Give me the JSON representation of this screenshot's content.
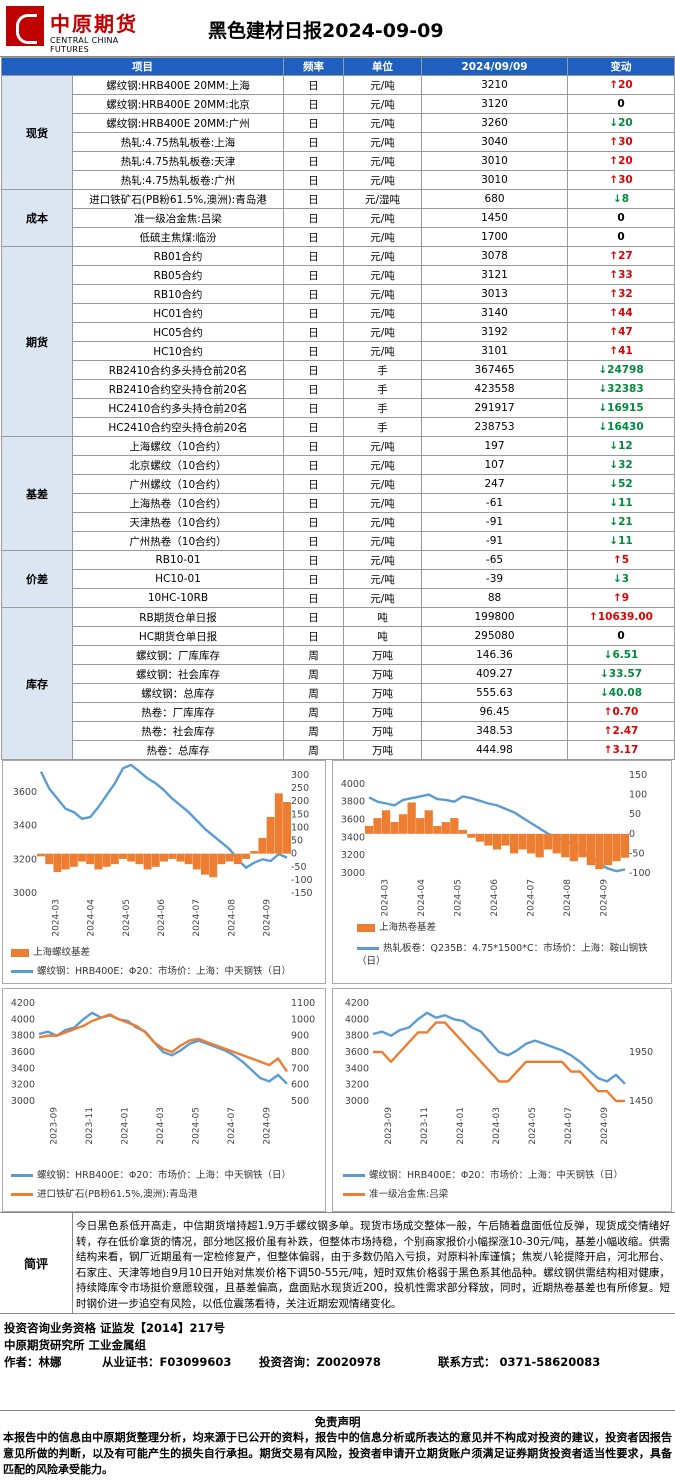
{
  "header": {
    "logo_cn": "中原期货",
    "logo_en": "CENTRAL CHINA FUTURES",
    "title": "黑色建材日报2024-09-09"
  },
  "table": {
    "columns": [
      "项目",
      "频率",
      "单位",
      "2024/09/09",
      "变动"
    ],
    "groups": [
      {
        "category": "现货",
        "rows": [
          {
            "item": "螺纹钢:HRB400E 20MM:上海",
            "freq": "日",
            "unit": "元/吨",
            "value": "3210",
            "change": "20",
            "dir": "up"
          },
          {
            "item": "螺纹钢:HRB400E 20MM:北京",
            "freq": "日",
            "unit": "元/吨",
            "value": "3120",
            "change": "0",
            "dir": "zero"
          },
          {
            "item": "螺纹钢:HRB400E 20MM:广州",
            "freq": "日",
            "unit": "元/吨",
            "value": "3260",
            "change": "20",
            "dir": "down"
          },
          {
            "item": "热轧:4.75热轧板卷:上海",
            "freq": "日",
            "unit": "元/吨",
            "value": "3040",
            "change": "30",
            "dir": "up"
          },
          {
            "item": "热轧:4.75热轧板卷:天津",
            "freq": "日",
            "unit": "元/吨",
            "value": "3010",
            "change": "20",
            "dir": "up"
          },
          {
            "item": "热轧:4.75热轧板卷:广州",
            "freq": "日",
            "unit": "元/吨",
            "value": "3010",
            "change": "30",
            "dir": "up"
          }
        ]
      },
      {
        "category": "成本",
        "rows": [
          {
            "item": "进口铁矿石(PB粉61.5%,澳洲):青岛港",
            "freq": "日",
            "unit": "元/湿吨",
            "value": "680",
            "change": "8",
            "dir": "down"
          },
          {
            "item": "准一级冶金焦:吕梁",
            "freq": "日",
            "unit": "元/吨",
            "value": "1450",
            "change": "0",
            "dir": "zero"
          },
          {
            "item": "低硫主焦煤:临汾",
            "freq": "日",
            "unit": "元/吨",
            "value": "1700",
            "change": "0",
            "dir": "zero"
          }
        ]
      },
      {
        "category": "期货",
        "rows": [
          {
            "item": "RB01合约",
            "freq": "日",
            "unit": "元/吨",
            "value": "3078",
            "change": "27",
            "dir": "up"
          },
          {
            "item": "RB05合约",
            "freq": "日",
            "unit": "元/吨",
            "value": "3121",
            "change": "33",
            "dir": "up"
          },
          {
            "item": "RB10合约",
            "freq": "日",
            "unit": "元/吨",
            "value": "3013",
            "change": "32",
            "dir": "up"
          },
          {
            "item": "HC01合约",
            "freq": "日",
            "unit": "元/吨",
            "value": "3140",
            "change": "44",
            "dir": "up"
          },
          {
            "item": "HC05合约",
            "freq": "日",
            "unit": "元/吨",
            "value": "3192",
            "change": "47",
            "dir": "up"
          },
          {
            "item": "HC10合约",
            "freq": "日",
            "unit": "元/吨",
            "value": "3101",
            "change": "41",
            "dir": "up"
          },
          {
            "item": "RB2410合约多头持仓前20名",
            "freq": "日",
            "unit": "手",
            "value": "367465",
            "change": "24798",
            "dir": "down"
          },
          {
            "item": "RB2410合约空头持仓前20名",
            "freq": "日",
            "unit": "手",
            "value": "423558",
            "change": "32383",
            "dir": "down"
          },
          {
            "item": "HC2410合约多头持仓前20名",
            "freq": "日",
            "unit": "手",
            "value": "291917",
            "change": "16915",
            "dir": "down"
          },
          {
            "item": "HC2410合约空头持仓前20名",
            "freq": "日",
            "unit": "手",
            "value": "238753",
            "change": "16430",
            "dir": "down"
          }
        ]
      },
      {
        "category": "基差",
        "rows": [
          {
            "item": "上海螺纹（10合约）",
            "freq": "日",
            "unit": "元/吨",
            "value": "197",
            "change": "12",
            "dir": "down"
          },
          {
            "item": "北京螺纹（10合约）",
            "freq": "日",
            "unit": "元/吨",
            "value": "107",
            "change": "32",
            "dir": "down"
          },
          {
            "item": "广州螺纹（10合约）",
            "freq": "日",
            "unit": "元/吨",
            "value": "247",
            "change": "52",
            "dir": "down"
          },
          {
            "item": "上海热卷（10合约）",
            "freq": "日",
            "unit": "元/吨",
            "value": "-61",
            "change": "11",
            "dir": "down"
          },
          {
            "item": "天津热卷（10合约）",
            "freq": "日",
            "unit": "元/吨",
            "value": "-91",
            "change": "21",
            "dir": "down"
          },
          {
            "item": "广州热卷（10合约）",
            "freq": "日",
            "unit": "元/吨",
            "value": "-91",
            "change": "11",
            "dir": "down"
          }
        ]
      },
      {
        "category": "价差",
        "rows": [
          {
            "item": "RB10-01",
            "freq": "日",
            "unit": "元/吨",
            "value": "-65",
            "change": "5",
            "dir": "up"
          },
          {
            "item": "HC10-01",
            "freq": "日",
            "unit": "元/吨",
            "value": "-39",
            "change": "3",
            "dir": "down"
          },
          {
            "item": "10HC-10RB",
            "freq": "日",
            "unit": "元/吨",
            "value": "88",
            "change": "9",
            "dir": "up"
          }
        ]
      },
      {
        "category": "库存",
        "rows": [
          {
            "item": "RB期货仓单日报",
            "freq": "日",
            "unit": "吨",
            "value": "199800",
            "change": "10639.00",
            "dir": "up"
          },
          {
            "item": "HC期货仓单日报",
            "freq": "日",
            "unit": "吨",
            "value": "295080",
            "change": "0",
            "dir": "zero"
          },
          {
            "item": "螺纹钢：厂库库存",
            "freq": "周",
            "unit": "万吨",
            "value": "146.36",
            "change": "6.51",
            "dir": "down"
          },
          {
            "item": "螺纹钢：社会库存",
            "freq": "周",
            "unit": "万吨",
            "value": "409.27",
            "change": "33.57",
            "dir": "down"
          },
          {
            "item": "螺纹钢：总库存",
            "freq": "周",
            "unit": "万吨",
            "value": "555.63",
            "change": "40.08",
            "dir": "down"
          },
          {
            "item": "热卷：厂库库存",
            "freq": "周",
            "unit": "万吨",
            "value": "96.45",
            "change": "0.70",
            "dir": "up"
          },
          {
            "item": "热卷：社会库存",
            "freq": "周",
            "unit": "万吨",
            "value": "348.53",
            "change": "2.47",
            "dir": "up"
          },
          {
            "item": "热卷：总库存",
            "freq": "周",
            "unit": "万吨",
            "value": "444.98",
            "change": "3.17",
            "dir": "up"
          }
        ]
      }
    ]
  },
  "chart_data": [
    {
      "type": "line",
      "x_ticks": [
        "2024-03",
        "2024-04",
        "2024-05",
        "2024-06",
        "2024-07",
        "2024-08",
        "2024-09"
      ],
      "y_left_ticks": [
        "3000",
        "3200",
        "3400",
        "3600"
      ],
      "y_right_ticks": [
        "-150",
        "-100",
        "-50",
        "0",
        "50",
        "100",
        "150",
        "200",
        "250",
        "300"
      ],
      "ylim_left": [
        3000,
        3700
      ],
      "ylim_right": [
        -150,
        300
      ],
      "series": [
        {
          "name": "螺纹钢：HRB400E：Φ20：市场价：上海：中天钢铁（日）",
          "axis": "left",
          "style": "line",
          "color": "#5b9bd5",
          "values": [
            3720,
            3620,
            3560,
            3500,
            3480,
            3440,
            3450,
            3510,
            3580,
            3650,
            3740,
            3760,
            3720,
            3680,
            3650,
            3610,
            3560,
            3520,
            3480,
            3430,
            3380,
            3340,
            3300,
            3260,
            3200,
            3150,
            3180,
            3200,
            3190,
            3230,
            3210
          ]
        },
        {
          "name": "上海螺纹基差",
          "axis": "right",
          "style": "area",
          "color": "#ed7d31",
          "values": [
            -10,
            -40,
            -70,
            -60,
            -50,
            -30,
            -40,
            -60,
            -50,
            -40,
            -20,
            -30,
            -40,
            -60,
            -50,
            -30,
            -20,
            -30,
            -40,
            -60,
            -80,
            -90,
            -40,
            -30,
            -40,
            -20,
            10,
            60,
            140,
            230,
            197
          ]
        }
      ]
    },
    {
      "type": "line",
      "x_ticks": [
        "2024-03",
        "2024-04",
        "2024-05",
        "2024-06",
        "2024-07",
        "2024-08",
        "2024-09"
      ],
      "y_left_ticks": [
        "3000",
        "3200",
        "3400",
        "3600",
        "3800",
        "4000"
      ],
      "y_right_ticks": [
        "-100",
        "-50",
        "0",
        "50",
        "100",
        "150"
      ],
      "ylim_left": [
        3000,
        4100
      ],
      "ylim_right": [
        -100,
        150
      ],
      "series": [
        {
          "name": "热轧板卷：Q235B：4.75*1500*C：市场价：上海：鞍山钢铁（日）",
          "axis": "left",
          "style": "line",
          "color": "#5b9bd5",
          "values": [
            3850,
            3800,
            3780,
            3760,
            3820,
            3840,
            3860,
            3880,
            3830,
            3820,
            3800,
            3860,
            3840,
            3810,
            3780,
            3760,
            3720,
            3680,
            3620,
            3560,
            3500,
            3440,
            3400,
            3360,
            3320,
            3250,
            3180,
            3100,
            3050,
            3020,
            3040
          ]
        },
        {
          "name": "上海热卷基差",
          "axis": "right",
          "style": "area",
          "color": "#ed7d31",
          "values": [
            20,
            40,
            60,
            30,
            50,
            80,
            40,
            60,
            20,
            30,
            40,
            10,
            -10,
            -20,
            -30,
            -40,
            -30,
            -50,
            -40,
            -50,
            -60,
            -40,
            -50,
            -60,
            -70,
            -60,
            -80,
            -90,
            -80,
            -70,
            -61
          ]
        }
      ]
    },
    {
      "type": "line",
      "x_ticks": [
        "2023-09",
        "2023-11",
        "2024-01",
        "2024-03",
        "2024-05",
        "2024-07",
        "2024-09"
      ],
      "y_left_ticks": [
        "3000",
        "3200",
        "3400",
        "3600",
        "3800",
        "4000",
        "4200"
      ],
      "y_right_ticks": [
        "500",
        "600",
        "700",
        "800",
        "900",
        "1000",
        "1100"
      ],
      "ylim_left": [
        3000,
        4200
      ],
      "ylim_right": [
        500,
        1100
      ],
      "series": [
        {
          "name": "螺纹钢：HRB400E：Φ20：市场价：上海：中天钢铁（日）",
          "axis": "left",
          "style": "line",
          "color": "#5b9bd5",
          "values": [
            3820,
            3850,
            3800,
            3870,
            3900,
            4000,
            4080,
            4020,
            4050,
            4000,
            3980,
            3900,
            3850,
            3720,
            3600,
            3560,
            3620,
            3700,
            3740,
            3700,
            3660,
            3620,
            3560,
            3480,
            3380,
            3280,
            3240,
            3320,
            3210
          ]
        },
        {
          "name": "进口铁矿石(PB粉61.5%,澳洲):青岛港",
          "axis": "right",
          "style": "line",
          "color": "#ed7d31",
          "values": [
            890,
            900,
            900,
            920,
            940,
            960,
            990,
            1010,
            1030,
            1000,
            980,
            960,
            920,
            860,
            820,
            800,
            840,
            870,
            880,
            860,
            840,
            820,
            800,
            780,
            760,
            740,
            720,
            760,
            680
          ]
        }
      ]
    },
    {
      "type": "line",
      "x_ticks": [
        "2023-09",
        "2023-11",
        "2024-01",
        "2024-03",
        "2024-05",
        "2024-07",
        "2024-09"
      ],
      "y_left_ticks": [
        "3000",
        "3200",
        "3400",
        "3600",
        "3800",
        "4000",
        "4200"
      ],
      "y_right_ticks": [
        "1450",
        "1950"
      ],
      "ylim_left": [
        3000,
        4200
      ],
      "ylim_right": [
        1450,
        2450
      ],
      "series": [
        {
          "name": "螺纹钢：HRB400E：Φ20：市场价：上海：中天钢铁（日）",
          "axis": "left",
          "style": "line",
          "color": "#5b9bd5",
          "values": [
            3820,
            3850,
            3800,
            3870,
            3900,
            4000,
            4080,
            4020,
            4050,
            4000,
            3980,
            3900,
            3850,
            3720,
            3600,
            3560,
            3620,
            3700,
            3740,
            3700,
            3660,
            3620,
            3560,
            3480,
            3380,
            3280,
            3240,
            3320,
            3210
          ]
        },
        {
          "name": "准一级冶金焦:吕梁",
          "axis": "right",
          "style": "line",
          "color": "#ed7d31",
          "values": [
            1950,
            1950,
            1850,
            1950,
            2050,
            2150,
            2150,
            2250,
            2250,
            2150,
            2050,
            1950,
            1850,
            1750,
            1650,
            1650,
            1750,
            1850,
            1850,
            1850,
            1850,
            1850,
            1750,
            1750,
            1650,
            1550,
            1550,
            1450,
            1450
          ]
        }
      ]
    }
  ],
  "comment": {
    "label": "简评",
    "text": "今日黑色系低开高走，中信期货增持超1.9万手螺纹钢多单。现货市场成交整体一般，午后随着盘面低位反弹，现货成交情绪好转，存在低价拿货的情况，部分地区报价虽有补跌，但整体市场持稳，个别商家报价小幅探涨10-30元/吨，基差小幅收缩。供需结构来看，钢厂近期虽有一定检修复产，但整体偏弱，由于多数仍陷入亏损，对原料补库谨慎；焦炭八轮提降开启，河北邢台、石家庄、天津等地自9月10日开始对焦炭价格下调50-55元/吨，短时双焦价格弱于黑色系其他品种。螺纹钢供需结构相对健康，持续降库令市场挺价意愿较强，且基差偏高，盘面贴水现货近200，投机性需求部分释放，同时，近期热卷基差也有所修复。短时钢价进一步追空有风险，以低位震荡看待，关注近期宏观情绪变化。"
  },
  "footer": {
    "qualification": "投资咨询业务资格   证监发【2014】217号",
    "institute": "中原期货研究所   工业金属组",
    "author": "作者：林娜",
    "cert": "从业证书：F03099603",
    "advisory": "投资咨询：Z0020978",
    "contact": "联系方式：  0371-58620083"
  },
  "disclaimer": {
    "title": "免责声明",
    "text": "本报告中的信息由中原期货整理分析，均来源于已公开的资料，报告中的信息分析或所表达的意见并不构成对投资的建议，投资者因报告意见所做的判断，以及有可能产生的损失自行承担。期货交易有风险，投资者申请开立期货账户须满足证券期货投资者适当性要求，具备匹配的风险承受能力。"
  },
  "colors": {
    "header_bg": "#1f5fbf",
    "category_bg": "#dce6f2",
    "up": "#e00000",
    "down": "#008a3c",
    "line_blue": "#5b9bd5",
    "orange": "#ed7d31"
  }
}
